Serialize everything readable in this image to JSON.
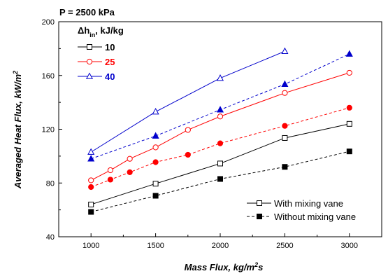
{
  "chart_data": {
    "type": "line",
    "annotation": "P = 2500 kPa",
    "xlabel": "Mass Flux,  kg/m",
    "xlabel_sup": "2",
    "xlabel_suffix": "s",
    "ylabel": "Averaged Heat Flux,  kW/m",
    "ylabel_sup": "2",
    "xlim": [
      750,
      3250
    ],
    "ylim": [
      40,
      200
    ],
    "xticks": [
      "1000",
      "1500",
      "2000",
      "2500",
      "3000"
    ],
    "yticks": [
      "40",
      "80",
      "120",
      "160",
      "200"
    ],
    "grid": false,
    "legend_title": "Δh",
    "legend_title_sub": "in",
    "legend_title_suffix": ",  kJ/kg",
    "series": [
      {
        "name": "10",
        "color": "#000000",
        "marker": "square",
        "with_vane": {
          "x": [
            1000,
            1500,
            2000,
            2500,
            3000
          ],
          "y": [
            64,
            79.5,
            94.5,
            113.5,
            124
          ]
        },
        "without_vane": {
          "x": [
            1000,
            1500,
            2000,
            2500,
            3000
          ],
          "y": [
            58.5,
            70.5,
            83,
            92,
            103.5
          ]
        }
      },
      {
        "name": "25",
        "color": "#ff0000",
        "marker": "circle",
        "with_vane": {
          "x": [
            1000,
            1150,
            1300,
            1500,
            1750,
            2000,
            2500,
            3000
          ],
          "y": [
            82,
            89.5,
            98,
            106.5,
            119.5,
            129.5,
            147,
            162
          ]
        },
        "without_vane": {
          "x": [
            1000,
            1150,
            1300,
            1500,
            1750,
            2000,
            2500,
            3000
          ],
          "y": [
            77,
            82.5,
            88,
            95.5,
            101,
            109.5,
            122.5,
            136
          ]
        }
      },
      {
        "name": "40",
        "color": "#0000cc",
        "marker": "triangle",
        "with_vane": {
          "x": [
            1000,
            1500,
            2000,
            2500
          ],
          "y": [
            103,
            133,
            158,
            178
          ]
        },
        "without_vane": {
          "x": [
            1000,
            1500,
            2000,
            2500,
            3000
          ],
          "y": [
            98,
            115,
            134.5,
            153.5,
            176
          ]
        }
      }
    ],
    "style_legend": [
      {
        "label": "With mixing vane",
        "marker_fill": "open",
        "line": "solid"
      },
      {
        "label": "Without mixing vane",
        "marker_fill": "filled",
        "line": "dashed"
      }
    ]
  }
}
